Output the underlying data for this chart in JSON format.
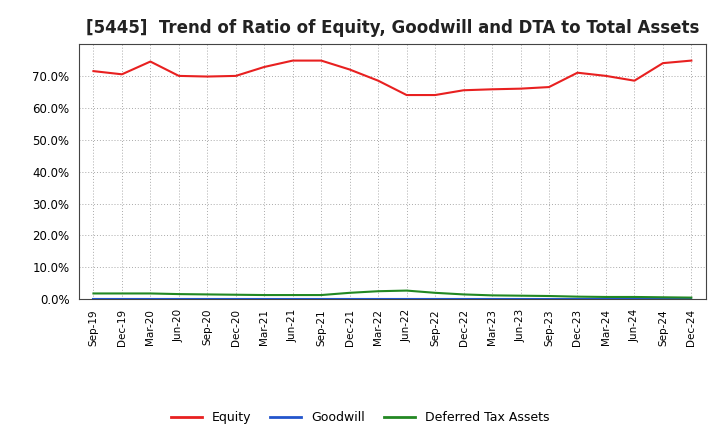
{
  "title": "[5445]  Trend of Ratio of Equity, Goodwill and DTA to Total Assets",
  "x_labels": [
    "Sep-19",
    "Dec-19",
    "Mar-20",
    "Jun-20",
    "Sep-20",
    "Dec-20",
    "Mar-21",
    "Jun-21",
    "Sep-21",
    "Dec-21",
    "Mar-22",
    "Jun-22",
    "Sep-22",
    "Dec-22",
    "Mar-23",
    "Jun-23",
    "Sep-23",
    "Dec-23",
    "Mar-24",
    "Jun-24",
    "Sep-24",
    "Dec-24"
  ],
  "equity": [
    0.715,
    0.705,
    0.745,
    0.7,
    0.698,
    0.7,
    0.728,
    0.748,
    0.748,
    0.72,
    0.685,
    0.64,
    0.64,
    0.655,
    0.658,
    0.66,
    0.665,
    0.71,
    0.7,
    0.685,
    0.74,
    0.748
  ],
  "goodwill": [
    0.0,
    0.0,
    0.0,
    0.0,
    0.0,
    0.0,
    0.0,
    0.0,
    0.0,
    0.0,
    0.0,
    0.0,
    0.0,
    0.0,
    0.0,
    0.0,
    0.0,
    0.0,
    0.0,
    0.0,
    0.0,
    0.0
  ],
  "dta": [
    0.018,
    0.018,
    0.018,
    0.016,
    0.015,
    0.014,
    0.013,
    0.013,
    0.013,
    0.02,
    0.025,
    0.027,
    0.02,
    0.015,
    0.012,
    0.011,
    0.01,
    0.008,
    0.007,
    0.007,
    0.006,
    0.005
  ],
  "equity_color": "#e82020",
  "goodwill_color": "#2255cc",
  "dta_color": "#228822",
  "bg_color": "#ffffff",
  "grid_color": "#aaaaaa",
  "ylim": [
    0.0,
    0.8
  ],
  "yticks": [
    0.0,
    0.1,
    0.2,
    0.3,
    0.4,
    0.5,
    0.6,
    0.7
  ],
  "title_fontsize": 12,
  "legend_labels": [
    "Equity",
    "Goodwill",
    "Deferred Tax Assets"
  ]
}
